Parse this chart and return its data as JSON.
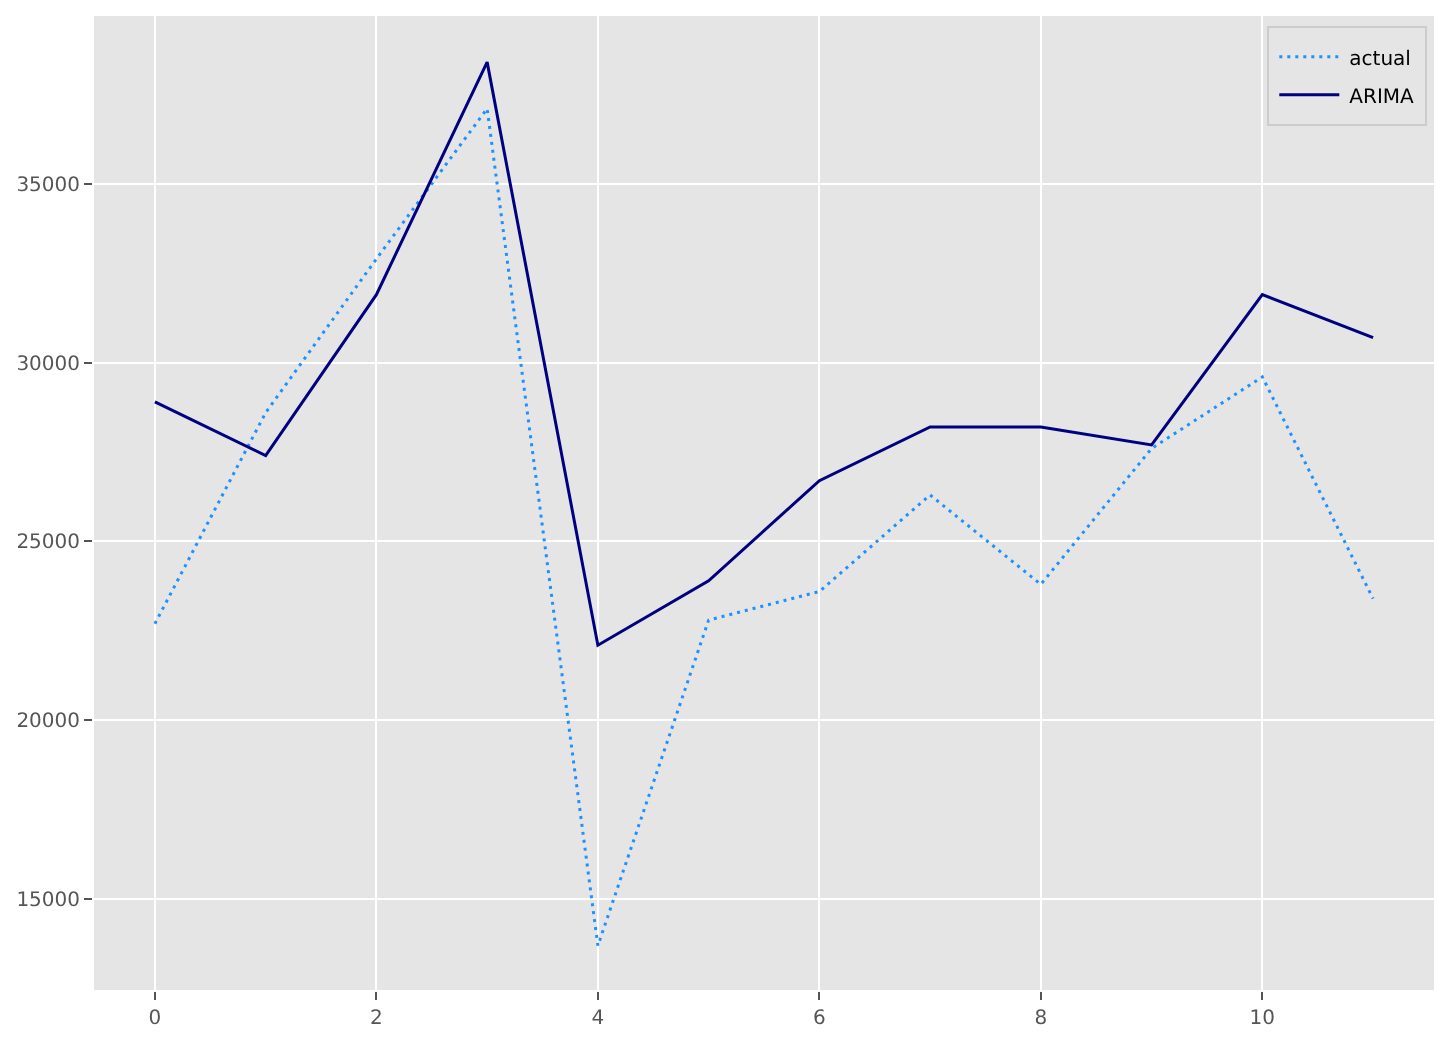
{
  "chart_data": {
    "type": "line",
    "x": [
      0,
      1,
      2,
      3,
      4,
      5,
      6,
      7,
      8,
      9,
      10,
      11
    ],
    "series": [
      {
        "name": "actual",
        "color": "#1e90ff",
        "line_style": "dotted",
        "values": [
          22700,
          28600,
          32900,
          37100,
          13700,
          22800,
          23600,
          26300,
          23800,
          27600,
          29600,
          23400
        ]
      },
      {
        "name": "ARIMA",
        "color": "#000080",
        "line_style": "solid",
        "values": [
          28900,
          27400,
          31900,
          38400,
          22100,
          23900,
          26700,
          28200,
          28200,
          27700,
          31900,
          30700
        ]
      }
    ],
    "xlim": [
      -0.55,
      11.55
    ],
    "xticks": [
      0,
      2,
      4,
      6,
      8,
      10
    ],
    "ylim": [
      12460,
      39690
    ],
    "yticks": [
      15000,
      20000,
      25000,
      30000,
      35000
    ],
    "grid": true,
    "legend": "top right",
    "marker": "none"
  }
}
